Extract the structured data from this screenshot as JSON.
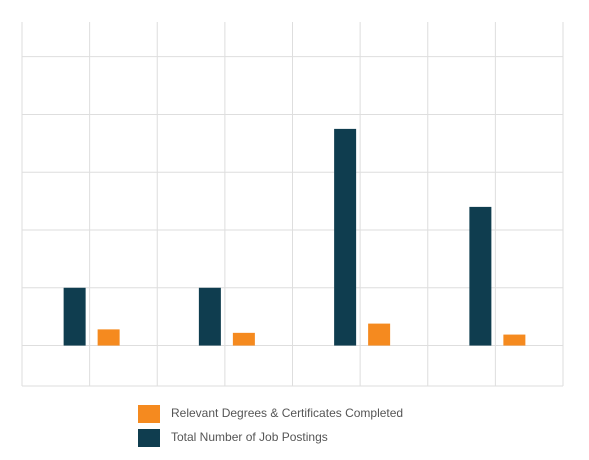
{
  "chart_data": {
    "type": "bar",
    "categories": [
      null,
      null,
      null,
      null
    ],
    "series": [
      {
        "name": "Relevant Degrees & Certificates Completed",
        "color": "#f58a1f",
        "values": [
          0.28,
          0.22,
          0.38,
          0.19
        ]
      },
      {
        "name": "Total Number of Job Postings",
        "color": "#0f3d4f",
        "values": [
          1.0,
          1.0,
          3.75,
          2.4
        ]
      }
    ],
    "ylim": [
      -0.7,
      5.6
    ],
    "yticks": [
      0,
      1,
      2,
      3,
      4,
      5
    ],
    "grid": true,
    "legend": "bottom"
  }
}
